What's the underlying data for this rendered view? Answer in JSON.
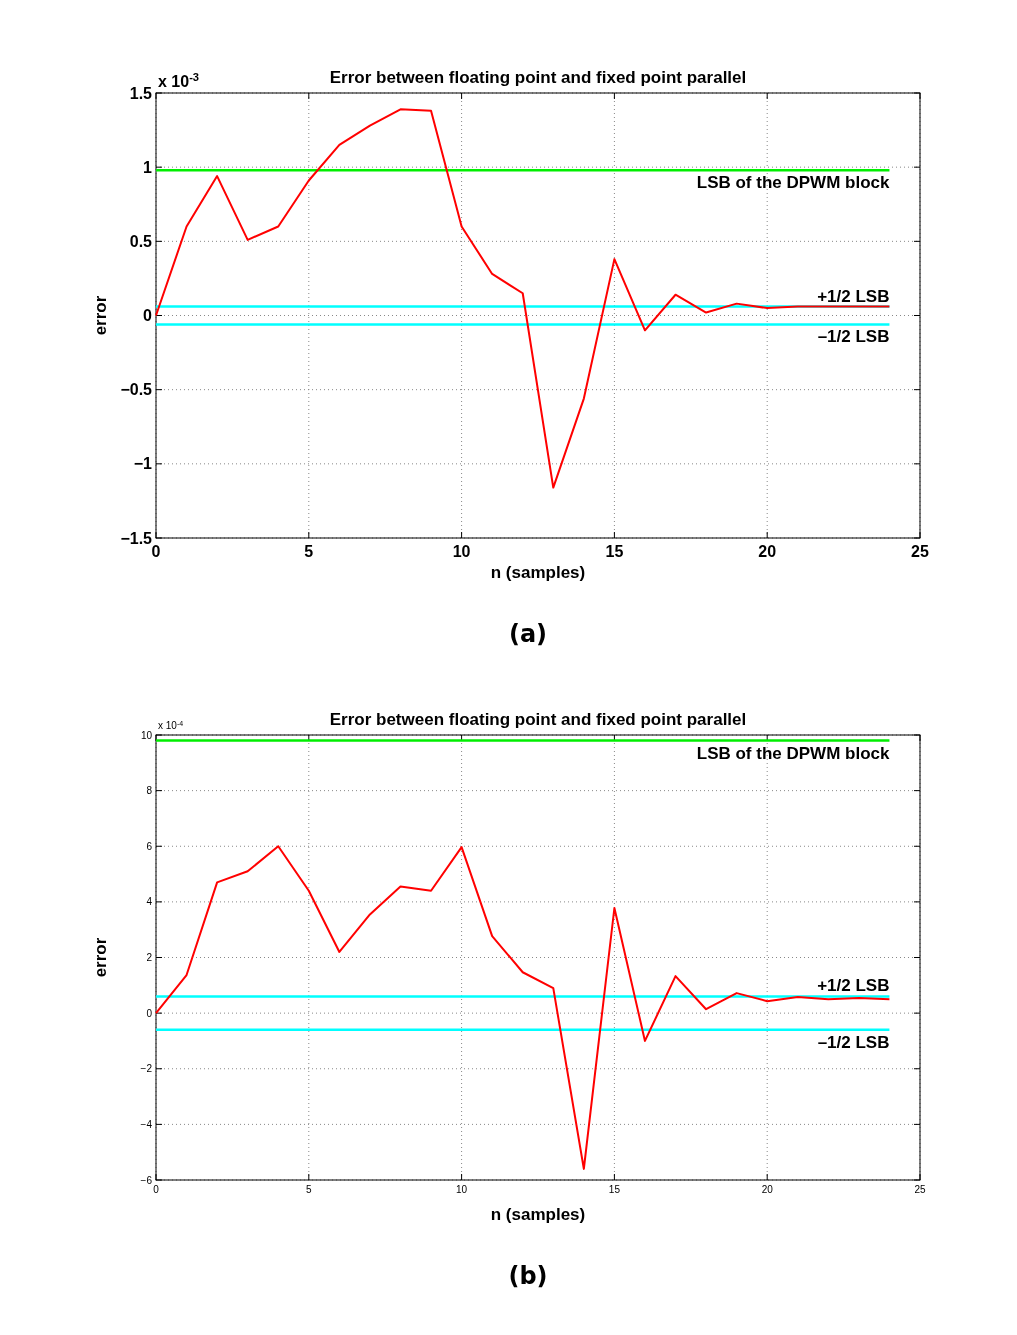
{
  "chart_data": [
    {
      "type": "line",
      "title": "Error between floating point and fixed point parallel",
      "xlabel": "n (samples)",
      "ylabel": "error",
      "annotations": [
        "x 10$^{-3}$",
        "(a)"
      ],
      "x": [
        0,
        1,
        2,
        3,
        4,
        5,
        6,
        7,
        8,
        9,
        10,
        11,
        12,
        13,
        14,
        15,
        16,
        17,
        18,
        19,
        20,
        21,
        22,
        23,
        24
      ],
      "series": [
        {
          "color": "#ff0000",
          "values": [
            0,
            0.6,
            0.94,
            0.51,
            0.6,
            0.91,
            1.15,
            1.28,
            1.39,
            1.38,
            0.6,
            0.28,
            0.15,
            -1.16,
            -0.56,
            0.38,
            -0.1,
            0.14,
            0.02,
            0.08,
            0.05,
            0.06,
            0.06,
            0.06,
            0.06
          ]
        }
      ],
      "xlim": [
        0,
        25
      ],
      "xticks": [
        0,
        5,
        10,
        15,
        20,
        25
      ],
      "ylim": [
        -1.5,
        1.5
      ],
      "yticks": [
        -1.5,
        -1,
        -0.5,
        0,
        0.5,
        1,
        1.5
      ],
      "grid": true,
      "ref_lines": [
        {
          "axis": "y",
          "value": 0.98,
          "label": "LSB of the DPWM block",
          "color": "#00ee00"
        },
        {
          "axis": "y",
          "value": 0.06,
          "label": "+1/2 LSB",
          "color": "#00ffff"
        },
        {
          "axis": "y",
          "value": -0.06,
          "label": "–1/2 LSB",
          "color": "#00ffff"
        }
      ]
    },
    {
      "type": "line",
      "title": "Error between floating point and fixed point parallel",
      "xlabel": "n (samples)",
      "ylabel": "error",
      "annotations": [
        "x 10$^{-4}$",
        "(b)"
      ],
      "x": [
        0,
        1,
        2,
        3,
        4,
        5,
        6,
        7,
        8,
        9,
        10,
        11,
        12,
        13,
        14,
        15,
        16,
        17,
        18,
        19,
        20,
        21,
        22,
        23,
        24
      ],
      "series": [
        {
          "color": "#ff0000",
          "values": [
            0,
            1.37,
            4.7,
            5.1,
            6,
            4.4,
            2.2,
            3.55,
            4.55,
            4.4,
            5.97,
            2.77,
            1.47,
            0.9,
            -5.6,
            3.78,
            -1,
            1.33,
            0.14,
            0.72,
            0.43,
            0.58,
            0.5,
            0.54,
            0.5
          ]
        }
      ],
      "xlim": [
        0,
        25
      ],
      "xticks": [
        0,
        5,
        10,
        15,
        20,
        25
      ],
      "ylim": [
        -6,
        10
      ],
      "yticks": [
        -6,
        -4,
        -2,
        0,
        2,
        4,
        6,
        8,
        10
      ],
      "grid": true,
      "ref_lines": [
        {
          "axis": "y",
          "value": 9.8,
          "label": "LSB of the DPWM block",
          "color": "#00ee00"
        },
        {
          "axis": "y",
          "value": 0.6,
          "label": "+1/2 LSB",
          "color": "#00ffff"
        },
        {
          "axis": "y",
          "value": -0.6,
          "label": "–1/2 LSB",
          "color": "#00ffff"
        }
      ]
    }
  ]
}
